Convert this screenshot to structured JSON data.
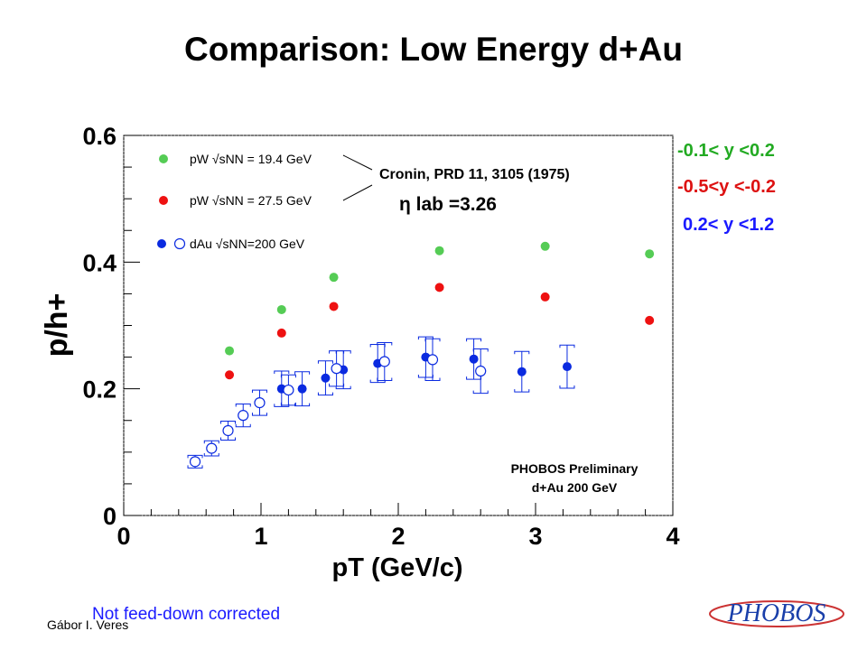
{
  "slide": {
    "title": "Comparison: Low Energy d+Au",
    "author": "Gábor I. Veres",
    "note": "Not feed-down corrected",
    "logo_text": "PHOBOS"
  },
  "rapidity_labels": [
    {
      "text": "-0.1< y <0.2",
      "color": "#22aa22"
    },
    {
      "text": "-0.5<y <-0.2",
      "color": "#dd1111"
    },
    {
      "text": "0.2< y <1.2",
      "color": "#1a1aff"
    }
  ],
  "chart_data": {
    "type": "scatter",
    "xlabel": "pT (GeV/c)",
    "ylabel": "p/h+",
    "xlim": [
      0,
      4
    ],
    "ylim": [
      0,
      0.6
    ],
    "x_ticks": [
      "0",
      "1",
      "2",
      "3",
      "4"
    ],
    "y_ticks": [
      "0",
      "0.2",
      "0.4",
      "0.6"
    ],
    "y_tick_values": [
      0,
      0.2,
      0.4,
      0.6
    ],
    "legend": [
      {
        "label": "pW √sNN = 19.4 GeV",
        "color": "#55cc55",
        "marker": "filled"
      },
      {
        "label": "pW √sNN = 27.5 GeV",
        "color": "#ee1111",
        "marker": "filled"
      },
      {
        "label": "dAu √sNN=200 GeV",
        "color": "#0a2ae0",
        "marker": "filled+open"
      }
    ],
    "annotations": {
      "reference": "Cronin, PRD 11, 3105 (1975)",
      "eta_lab": "η lab =3.26",
      "preliminary": "PHOBOS Preliminary",
      "system": "d+Au 200 GeV"
    },
    "series": [
      {
        "name": "pW √sNN = 19.4 GeV",
        "color": "#55cc55",
        "marker": "filled",
        "points": [
          [
            0.77,
            0.26
          ],
          [
            1.15,
            0.325
          ],
          [
            1.53,
            0.376
          ],
          [
            2.3,
            0.418
          ],
          [
            3.07,
            0.425
          ],
          [
            3.83,
            0.413
          ]
        ]
      },
      {
        "name": "pW √sNN = 27.5 GeV",
        "color": "#ee1111",
        "marker": "filled",
        "points": [
          [
            0.77,
            0.222
          ],
          [
            1.15,
            0.288
          ],
          [
            1.53,
            0.33
          ],
          [
            2.3,
            0.36
          ],
          [
            3.07,
            0.345
          ],
          [
            3.83,
            0.308
          ]
        ]
      },
      {
        "name": "dAu √sNN=200 GeV",
        "color": "#0a2ae0",
        "marker": "filled",
        "points": [
          [
            1.15,
            0.2,
            0.028
          ],
          [
            1.3,
            0.2,
            0.027
          ],
          [
            1.47,
            0.217,
            0.027
          ],
          [
            1.6,
            0.23,
            0.03
          ],
          [
            1.85,
            0.24,
            0.03
          ],
          [
            2.2,
            0.25,
            0.032
          ],
          [
            2.55,
            0.247,
            0.032
          ],
          [
            2.9,
            0.227,
            0.032
          ],
          [
            3.23,
            0.235,
            0.034
          ]
        ]
      },
      {
        "name": "dAu √sNN=200 GeV",
        "color": "#0a2ae0",
        "marker": "open",
        "points": [
          [
            0.52,
            0.085,
            0.01
          ],
          [
            0.64,
            0.106,
            0.012
          ],
          [
            0.76,
            0.134,
            0.015
          ],
          [
            0.87,
            0.158,
            0.018
          ],
          [
            0.99,
            0.178,
            0.02
          ],
          [
            1.2,
            0.198,
            0.024
          ],
          [
            1.55,
            0.232,
            0.028
          ],
          [
            1.9,
            0.243,
            0.03
          ],
          [
            2.25,
            0.246,
            0.033
          ],
          [
            2.6,
            0.228,
            0.035
          ]
        ]
      }
    ]
  }
}
